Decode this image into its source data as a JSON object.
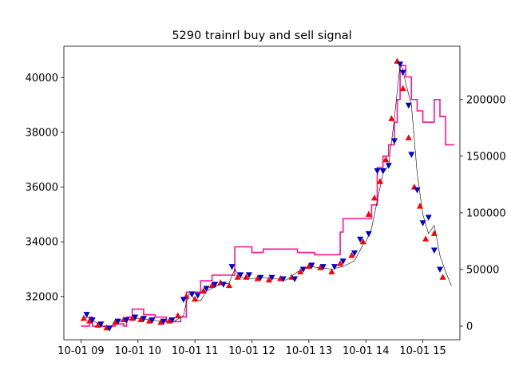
{
  "chart_data": {
    "type": "line",
    "title": "5290 trainrl buy and sell signal",
    "xlabel": "",
    "ylabel": "",
    "x_ticks": [
      "10-01 09",
      "10-01 10",
      "10-01 11",
      "10-01 12",
      "10-01 13",
      "10-01 14",
      "10-01 15"
    ],
    "xlim": [
      8.7,
      15.65
    ],
    "left_axis": {
      "ticks": [
        32000,
        34000,
        36000,
        38000,
        40000
      ],
      "ylim": [
        30420,
        41150
      ]
    },
    "right_axis": {
      "ticks": [
        0,
        50000,
        100000,
        150000,
        200000
      ],
      "ylim": [
        -12000,
        247000
      ]
    },
    "colors": {
      "price": "#000000",
      "volume": "#ff1493",
      "buy": "#ff0000",
      "sell": "#0000cc"
    },
    "series": [
      {
        "axis": "left",
        "role": "price",
        "x": [
          9.0,
          9.1,
          9.2,
          9.3,
          9.4,
          9.5,
          9.6,
          9.8,
          10.0,
          10.2,
          10.4,
          10.6,
          10.8,
          10.85,
          10.9,
          11.0,
          11.1,
          11.2,
          11.4,
          11.6,
          11.7,
          11.8,
          12.0,
          12.2,
          12.4,
          12.6,
          12.8,
          13.0,
          13.2,
          13.4,
          13.6,
          13.8,
          13.95,
          14.0,
          14.1,
          14.2,
          14.3,
          14.4,
          14.5,
          14.6,
          14.65,
          14.7,
          14.8,
          14.9,
          15.0,
          15.1,
          15.2,
          15.3,
          15.4,
          15.5
        ],
        "values": [
          31100,
          31250,
          31150,
          31000,
          30900,
          30850,
          31050,
          31150,
          31200,
          31150,
          31100,
          31050,
          31300,
          31800,
          32100,
          31900,
          31850,
          32200,
          32400,
          32500,
          33000,
          32700,
          32650,
          32700,
          32650,
          32600,
          32900,
          33100,
          33050,
          33000,
          33100,
          33300,
          33900,
          34000,
          34500,
          35500,
          36500,
          36800,
          38500,
          40500,
          40300,
          39800,
          39000,
          36500,
          35000,
          34300,
          34600,
          33500,
          32900,
          32400
        ]
      },
      {
        "axis": "right",
        "role": "volume",
        "x": [
          9.0,
          9.05,
          9.15,
          9.2,
          9.4,
          9.6,
          9.75,
          9.8,
          9.9,
          10.1,
          10.3,
          10.5,
          10.75,
          10.85,
          11.0,
          11.1,
          11.3,
          11.6,
          11.7,
          12.0,
          12.2,
          12.6,
          12.8,
          13.0,
          13.1,
          13.35,
          13.55,
          13.6,
          13.7,
          14.0,
          14.1,
          14.2,
          14.3,
          14.4,
          14.5,
          14.55,
          14.6,
          14.7,
          14.8,
          14.9,
          15.0,
          15.1,
          15.2,
          15.3,
          15.4,
          15.55
        ],
        "values": [
          0,
          0,
          8000,
          0,
          0,
          2000,
          0,
          8000,
          15000,
          10000,
          8000,
          4000,
          8000,
          30000,
          30000,
          40000,
          45000,
          45000,
          70000,
          65000,
          68000,
          68000,
          65000,
          65000,
          63000,
          63000,
          83000,
          95000,
          95000,
          95000,
          107000,
          140000,
          150000,
          160000,
          180000,
          200000,
          230000,
          220000,
          200000,
          190000,
          180000,
          180000,
          200000,
          185000,
          160000,
          160000
        ]
      },
      {
        "axis": "left",
        "role": "buy",
        "x": [
          9.05,
          9.15,
          9.3,
          9.45,
          9.6,
          9.75,
          9.9,
          10.05,
          10.2,
          10.4,
          10.55,
          10.7,
          10.85,
          11.0,
          11.15,
          11.3,
          11.45,
          11.6,
          11.75,
          11.9,
          12.1,
          12.3,
          12.5,
          12.7,
          12.85,
          13.0,
          13.2,
          13.4,
          13.55,
          13.75,
          13.95,
          14.05,
          14.15,
          14.25,
          14.35,
          14.45,
          14.55,
          14.65,
          14.75,
          14.85,
          14.95,
          15.05,
          15.2,
          15.35
        ],
        "values": [
          31200,
          31100,
          30950,
          30850,
          31050,
          31150,
          31200,
          31150,
          31100,
          31050,
          31100,
          31300,
          32000,
          31900,
          32200,
          32400,
          32500,
          32400,
          32700,
          32700,
          32650,
          32600,
          32650,
          32700,
          32900,
          33100,
          33050,
          32900,
          33200,
          33500,
          34000,
          35000,
          35600,
          36200,
          37000,
          38500,
          40600,
          39600,
          37800,
          36000,
          35300,
          34100,
          34300,
          32700
        ]
      },
      {
        "axis": "left",
        "role": "sell",
        "x": [
          9.1,
          9.2,
          9.35,
          9.5,
          9.65,
          9.8,
          9.95,
          10.1,
          10.25,
          10.45,
          10.6,
          10.8,
          10.95,
          11.05,
          11.2,
          11.35,
          11.5,
          11.65,
          11.8,
          11.95,
          12.15,
          12.35,
          12.55,
          12.75,
          12.9,
          13.05,
          13.25,
          13.45,
          13.6,
          13.8,
          13.9,
          14.05,
          14.2,
          14.3,
          14.4,
          14.5,
          14.6,
          14.65,
          14.75,
          14.8,
          14.9,
          15.0,
          15.1,
          15.2,
          15.3
        ],
        "values": [
          31350,
          31150,
          31000,
          30850,
          31100,
          31150,
          31250,
          31200,
          31150,
          31100,
          31150,
          31900,
          32100,
          32050,
          32300,
          32450,
          32450,
          33100,
          32800,
          32800,
          32700,
          32700,
          32650,
          32650,
          33000,
          33150,
          33100,
          33100,
          33300,
          33600,
          34100,
          34300,
          36600,
          36600,
          36800,
          37700,
          40500,
          40200,
          39000,
          37200,
          35900,
          34700,
          34900,
          33700,
          33000
        ]
      }
    ]
  }
}
